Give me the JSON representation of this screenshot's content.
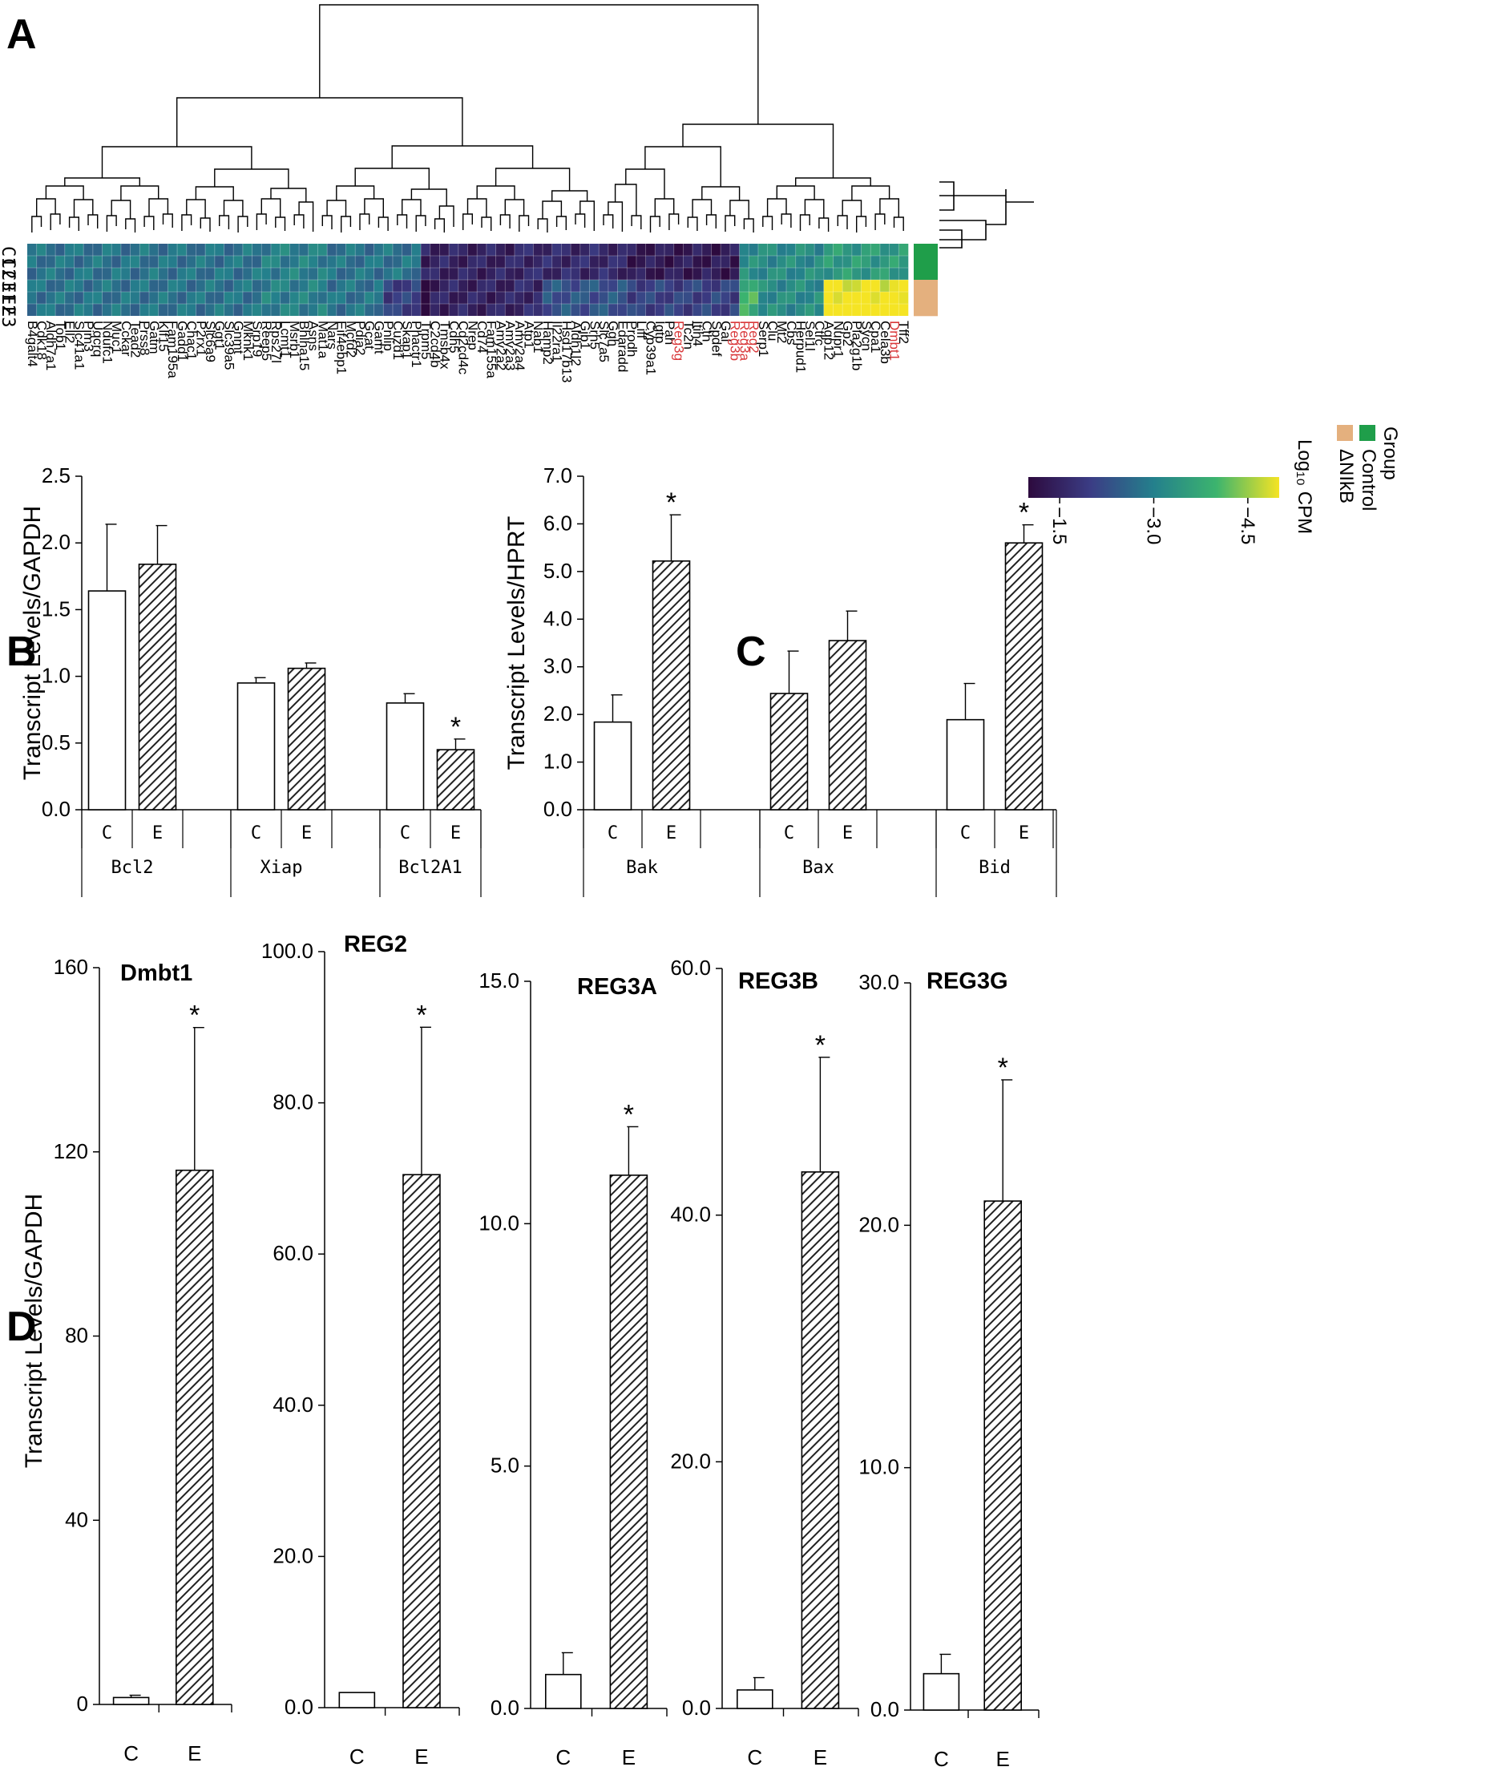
{
  "panels": {
    "a": "A",
    "b": "B",
    "c": "C",
    "d": "D"
  },
  "colors": {
    "control": "#1f9e4a",
    "treated": "#e4b07e",
    "red_gene": "#d9383a"
  },
  "chart_data": [
    {
      "id": "A",
      "type": "heatmap",
      "samples": [
        "C1",
        "C2",
        "C3",
        "E1",
        "E2",
        "E3"
      ],
      "sample_labels": [
        "C1",
        "C2",
        "C3",
        "E1",
        "E2",
        "E3"
      ],
      "groups": [
        "Control",
        "Control",
        "Control",
        "ΔNIkB",
        "ΔNIkB",
        "ΔNIkB"
      ],
      "genes": [
        "B4galt4",
        "Cdk18",
        "Aldh7a1",
        "Tob1",
        "Ell2",
        "Slc41a1",
        "Pim3",
        "Uqcrq",
        "Ndufc1",
        "Muc1",
        "Cckar",
        "Tead2",
        "Prss8",
        "Gatm",
        "Klf15",
        "Fam195a",
        "Gadd1",
        "Chac1",
        "P2rx1",
        "Slc6a9",
        "Ggt1",
        "Slc39a5",
        "Gnmt",
        "Mknk1",
        "Srp19",
        "Reep5",
        "Rps27l",
        "Lcmt1",
        "Msrb1",
        "Bhlha15",
        "Asns",
        "Mat1a",
        "Nars",
        "Eif4ebp1",
        "Mcfd2",
        "Pdia2",
        "Gcat",
        "Gamt",
        "Pnlip",
        "Cuzd1",
        "Skap1",
        "Phactr1",
        "Trpm5",
        "C2cd4b",
        "Tmsb4x",
        "Cdh5",
        "Cd2cd4c",
        "Nrep",
        "Cd74",
        "Fam155a",
        "Amy2a2",
        "Amy2a3",
        "Amy2a4",
        "Atp1",
        "Nab1",
        "Hamp2",
        "Il22ra1",
        "Hsd17b13",
        "Aldh1l2",
        "Gjb1",
        "Srh5",
        "Slc7a5",
        "Ggh",
        "Edaradd",
        "Prodh",
        "Liff",
        "Cyp39a1",
        "Igtp",
        "Pah",
        "Reg3g",
        "Tc2n",
        "Itih4",
        "Cth",
        "Spdef",
        "Gal",
        "Reg3b",
        "Reg3a",
        "Reg2",
        "Serp1",
        "Clu",
        "Mt2",
        "Cbs",
        "Herpud1",
        "Sel1l",
        "Ctrc",
        "Aqp12",
        "Nupr1",
        "Gp2",
        "Pla2g1b",
        "Sycn",
        "Cpa1",
        "Cela3b",
        "Dmbt1",
        "Tff2"
      ],
      "red_genes": [
        "Reg3g",
        "Reg3b",
        "Reg3a",
        "Reg2",
        "Dmbt1"
      ],
      "colorbar": {
        "title": "Log₁₀ CPM",
        "ticks": [
          "−1.5",
          "−3.0",
          "−4.5"
        ],
        "values": [
          -1.5,
          -3.0,
          -4.5
        ],
        "range": [
          -1.0,
          -5.0
        ]
      },
      "legend": {
        "title": "Group",
        "items": [
          "Control",
          "ΔNIkB"
        ]
      }
    },
    {
      "id": "B",
      "type": "bar",
      "ylabel": "Transcript Levels/GAPDH",
      "ylim": [
        0,
        2.5
      ],
      "yticks": [
        "0.0",
        "0.5",
        "1.0",
        "1.5",
        "2.0",
        "2.5"
      ],
      "ytick_values": [
        0,
        0.5,
        1.0,
        1.5,
        2.0,
        2.5
      ],
      "genes": [
        "Bcl2",
        "Xiap",
        "Bcl2A1"
      ],
      "conditions": [
        "C",
        "E"
      ],
      "values": [
        [
          1.64,
          1.84
        ],
        [
          0.95,
          1.06
        ],
        [
          0.8,
          0.45
        ]
      ],
      "errors": [
        [
          0.5,
          0.29
        ],
        [
          0.04,
          0.04
        ],
        [
          0.07,
          0.08
        ]
      ],
      "significant": [
        [
          false,
          false
        ],
        [
          false,
          false
        ],
        [
          false,
          true
        ]
      ],
      "star": "*"
    },
    {
      "id": "C",
      "type": "bar",
      "ylabel": "Transcript Levels/HPRT",
      "ylim": [
        0,
        7
      ],
      "yticks": [
        "0.0",
        "1.0",
        "2.0",
        "3.0",
        "4.0",
        "5.0",
        "6.0",
        "7.0"
      ],
      "ytick_values": [
        0,
        1,
        2,
        3,
        4,
        5,
        6,
        7
      ],
      "genes": [
        "Bak",
        "Bax",
        "Bid"
      ],
      "conditions": [
        "C",
        "E"
      ],
      "values": [
        [
          1.84,
          5.22
        ],
        [
          2.44,
          3.55
        ],
        [
          1.89,
          5.6
        ]
      ],
      "errors": [
        [
          0.57,
          0.97
        ],
        [
          0.89,
          0.62
        ],
        [
          0.76,
          0.38
        ]
      ],
      "significant": [
        [
          false,
          true
        ],
        [
          false,
          false
        ],
        [
          false,
          true
        ]
      ],
      "star": "*"
    },
    {
      "id": "D",
      "type": "bar",
      "ylabel": "Transcript Levels/GAPDH",
      "conditions": [
        "C",
        "E"
      ],
      "star": "*",
      "subplots": [
        {
          "title": "Dmbt1",
          "ylim": [
            0,
            160
          ],
          "yticks": [
            "0",
            "40",
            "80",
            "120",
            "160"
          ],
          "ytick_values": [
            0,
            40,
            80,
            120,
            160
          ],
          "values": [
            1.5,
            116
          ],
          "errors": [
            0.5,
            31
          ],
          "significant": [
            false,
            true
          ]
        },
        {
          "title": "REG2",
          "ylim": [
            0,
            100
          ],
          "yticks": [
            "0.0",
            "20.0",
            "40.0",
            "60.0",
            "80.0",
            "100.0"
          ],
          "ytick_values": [
            0,
            20,
            40,
            60,
            80,
            100
          ],
          "values": [
            2.0,
            70.5
          ],
          "errors": [
            0,
            19.5
          ],
          "significant": [
            false,
            true
          ]
        },
        {
          "title": "REG3A",
          "ylim": [
            0,
            15
          ],
          "yticks": [
            "0.0",
            "5.0",
            "10.0",
            "15.0"
          ],
          "ytick_values": [
            0,
            5,
            10,
            15
          ],
          "values": [
            0.7,
            11.0
          ],
          "errors": [
            0.45,
            1.0
          ],
          "significant": [
            false,
            true
          ]
        },
        {
          "title": "REG3B",
          "ylim": [
            0,
            60
          ],
          "yticks": [
            "0.0",
            "20.0",
            "40.0",
            "60.0"
          ],
          "ytick_values": [
            0,
            20,
            40,
            60
          ],
          "values": [
            1.5,
            43.5
          ],
          "errors": [
            1.0,
            9.3
          ],
          "significant": [
            false,
            true
          ]
        },
        {
          "title": "REG3G",
          "ylim": [
            0,
            30
          ],
          "yticks": [
            "0.0",
            "10.0",
            "20.0",
            "30.0"
          ],
          "ytick_values": [
            0,
            10,
            20,
            30
          ],
          "values": [
            1.5,
            21.0
          ],
          "errors": [
            0.8,
            5.0
          ],
          "significant": [
            false,
            true
          ]
        }
      ]
    }
  ]
}
